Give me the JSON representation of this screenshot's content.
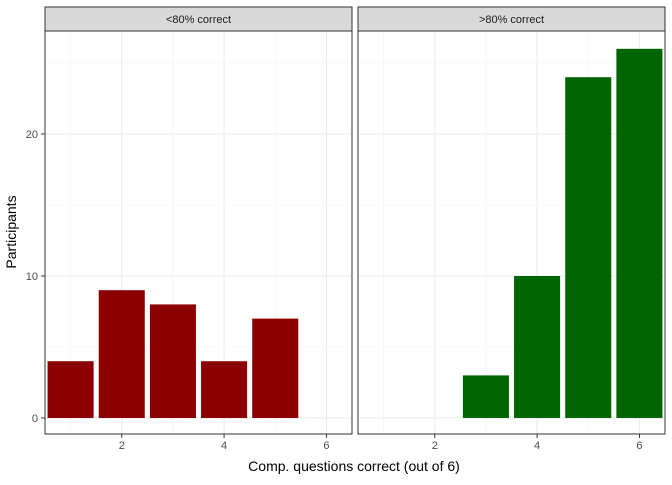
{
  "chart_data": {
    "type": "bar",
    "xlabel": "Comp. questions correct (out of 6)",
    "ylabel": "Participants",
    "grid": true,
    "x_ticks": [
      2,
      4,
      6
    ],
    "y_ticks": [
      0,
      10,
      20
    ],
    "xlim": [
      0.5,
      6.5
    ],
    "ylim": [
      0,
      26
    ],
    "panels": [
      {
        "strip_label": "<80% correct",
        "color": "#8B0000",
        "x": [
          1,
          2,
          3,
          4,
          5
        ],
        "values": [
          4,
          9,
          8,
          4,
          7
        ]
      },
      {
        "strip_label": ">80% correct",
        "color": "#006400",
        "x": [
          3,
          4,
          5,
          6
        ],
        "values": [
          3,
          10,
          24,
          26
        ]
      }
    ]
  }
}
